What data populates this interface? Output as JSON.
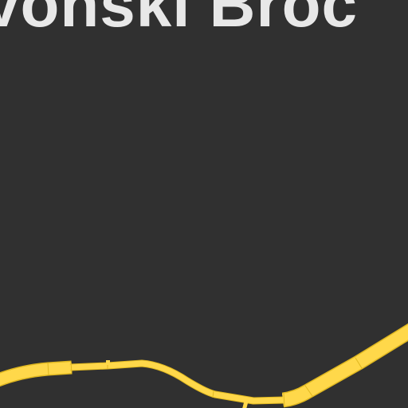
{
  "map": {
    "background_color": "#303030",
    "label_color": "#e8e8e8",
    "road_color": "#ffd84a",
    "road_edge_color": "#e0b820",
    "labels": {
      "place": "vonski Broc"
    },
    "features": {
      "main_road": "yellow-road",
      "side_road": "yellow-road-branch"
    }
  }
}
